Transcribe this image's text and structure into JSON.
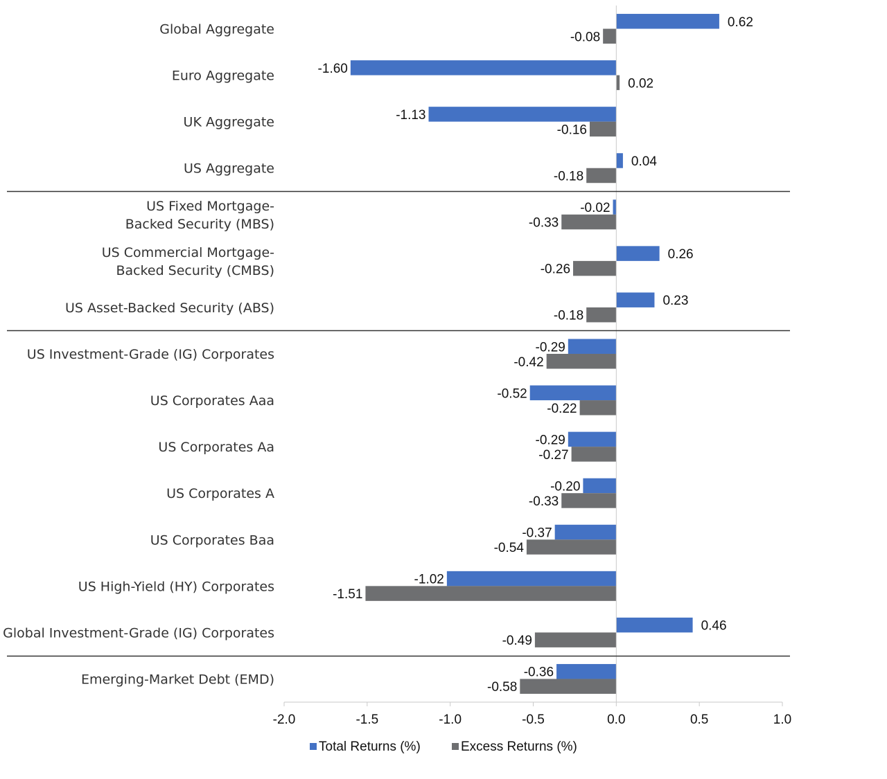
{
  "chart_data": {
    "type": "bar",
    "orientation": "horizontal",
    "categories": [
      [
        "Global Aggregate"
      ],
      [
        "Euro Aggregate"
      ],
      [
        "UK Aggregate"
      ],
      [
        "US Aggregate"
      ],
      [
        "US Fixed Mortgage-",
        "Backed Security (MBS)"
      ],
      [
        "US Commercial Mortgage-",
        "Backed Security (CMBS)"
      ],
      [
        "US Asset-Backed Security (ABS)"
      ],
      [
        "US Investment-Grade (IG) Corporates"
      ],
      [
        "US Corporates Aaa"
      ],
      [
        "US Corporates Aa"
      ],
      [
        "US Corporates A"
      ],
      [
        "US Corporates Baa"
      ],
      [
        "US High-Yield (HY) Corporates"
      ],
      [
        "Global Investment-Grade (IG) Corporates"
      ],
      [
        "Emerging-Market Debt (EMD)"
      ]
    ],
    "series": [
      {
        "name": "Total Returns (%)",
        "color": "#4472c4",
        "values": [
          0.62,
          -1.6,
          -1.13,
          0.04,
          -0.02,
          0.26,
          0.23,
          -0.29,
          -0.52,
          -0.29,
          -0.2,
          -0.37,
          -1.02,
          0.46,
          -0.36
        ],
        "labels": [
          "0.62",
          "-1.60",
          "-1.13",
          "0.04",
          "-0.02",
          "0.26",
          "0.23",
          "-0.29",
          "-0.52",
          "-0.29",
          "-0.20",
          "-0.37",
          "-1.02",
          "0.46",
          "-0.36"
        ]
      },
      {
        "name": "Excess Returns (%)",
        "color": "#6e6f71",
        "values": [
          -0.08,
          0.02,
          -0.16,
          -0.18,
          -0.33,
          -0.26,
          -0.18,
          -0.42,
          -0.22,
          -0.27,
          -0.33,
          -0.54,
          -1.51,
          -0.49,
          -0.58
        ],
        "labels": [
          "-0.08",
          "0.02",
          "-0.16",
          "-0.18",
          "-0.33",
          "-0.26",
          "-0.18",
          "-0.42",
          "-0.22",
          "-0.27",
          "-0.33",
          "-0.54",
          "-1.51",
          "-0.49",
          "-0.58"
        ]
      }
    ],
    "group_separators_after_index": [
      3,
      6,
      13
    ],
    "xlim": [
      -2.0,
      1.0
    ],
    "xticks": [
      -2.0,
      -1.5,
      -1.0,
      -0.5,
      0.0,
      0.5,
      1.0
    ],
    "xtick_labels": [
      "-2.0",
      "-1.5",
      "-1.0",
      "-0.5",
      "0.0",
      "0.5",
      "1.0"
    ],
    "title": "",
    "xlabel": "",
    "ylabel": "",
    "grid": false,
    "legend_position": "bottom-center"
  }
}
